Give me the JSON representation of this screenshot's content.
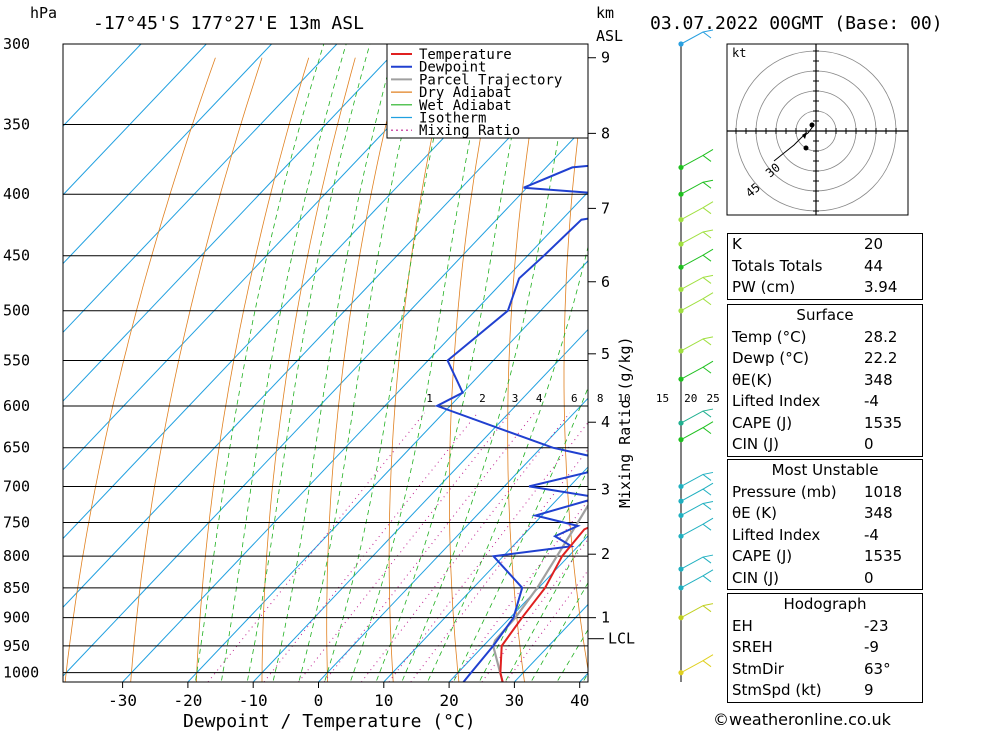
{
  "header": {
    "location": "-17°45'S 177°27'E 13m ASL",
    "datetime": "03.07.2022 00GMT (Base: 00)",
    "hpa_unit": "hPa",
    "km_unit": "km",
    "asl_unit": "ASL"
  },
  "chart_data": {
    "type": "line",
    "title": "-17°45'S 177°27'E 13m ASL",
    "xlabel": "Dewpoint / Temperature (°C)",
    "ylabel": "hPa",
    "y2label": "Mixing Ratio (g/kg)",
    "x_ticks": [
      "-30",
      "-20",
      "-10",
      "0",
      "10",
      "20",
      "30",
      "40"
    ],
    "p_ticks": [
      "300",
      "350",
      "400",
      "450",
      "500",
      "550",
      "600",
      "650",
      "700",
      "750",
      "800",
      "850",
      "900",
      "950",
      "1000"
    ],
    "km_ticks": [
      "1",
      "2",
      "3",
      "4",
      "5",
      "6",
      "7",
      "8",
      "9"
    ],
    "lcl_label": "LCL",
    "mixing_ratio_labels": [
      "1",
      "2",
      "3",
      "4",
      "6",
      "8",
      "10",
      "15",
      "20",
      "25"
    ],
    "legend": [
      "Temperature",
      "Dewpoint",
      "Parcel Trajectory",
      "Dry Adiabat",
      "Wet Adiabat",
      "Isotherm",
      "Mixing Ratio"
    ],
    "colors": {
      "temperature": "#e02020",
      "dewpoint": "#2040d0",
      "parcel": "#a0a0a0",
      "dry_adiabat": "#e08020",
      "wet_adiabat": "#20b020",
      "isotherm": "#20a0e0",
      "mixing_ratio": "#c02090"
    },
    "temperature": [
      [
        1018,
        28.2
      ],
      [
        1000,
        26.5
      ],
      [
        950,
        22.8
      ],
      [
        900,
        21.8
      ],
      [
        850,
        21.0
      ],
      [
        800,
        19.0
      ],
      [
        760,
        18.5
      ],
      [
        750,
        19.8
      ],
      [
        725,
        17.8
      ],
      [
        700,
        16.5
      ],
      [
        650,
        12.8
      ],
      [
        600,
        7.6
      ],
      [
        550,
        3.2
      ],
      [
        500,
        -1.8
      ],
      [
        450,
        -7.5
      ],
      [
        425,
        -11.0
      ],
      [
        400,
        -14.2
      ],
      [
        375,
        -17.0
      ],
      [
        350,
        -21.5
      ],
      [
        325,
        -26.0
      ],
      [
        300,
        -31.0
      ]
    ],
    "dewpoint": [
      [
        1018,
        22.2
      ],
      [
        1000,
        22.0
      ],
      [
        950,
        21.5
      ],
      [
        900,
        20.5
      ],
      [
        850,
        17.5
      ],
      [
        800,
        8.5
      ],
      [
        785,
        19.0
      ],
      [
        770,
        15.0
      ],
      [
        755,
        17.0
      ],
      [
        740,
        9.0
      ],
      [
        715,
        16.0
      ],
      [
        700,
        3.8
      ],
      [
        670,
        15.0
      ],
      [
        650,
        1.8
      ],
      [
        600,
        -22.0
      ],
      [
        585,
        -20.0
      ],
      [
        550,
        -27.0
      ],
      [
        500,
        -25.0
      ],
      [
        470,
        -28.0
      ],
      [
        450,
        -27.5
      ],
      [
        420,
        -27.0
      ],
      [
        410,
        -16.5
      ],
      [
        405,
        -12.5
      ],
      [
        395,
        -40.5
      ],
      [
        380,
        -36.0
      ],
      [
        370,
        -16.0
      ],
      [
        350,
        -40.0
      ],
      [
        335,
        -29.0
      ],
      [
        320,
        -46.0
      ],
      [
        305,
        -42.0
      ],
      [
        300,
        -46.0
      ]
    ],
    "parcel": [
      [
        1018,
        28.2
      ],
      [
        950,
        21.5
      ],
      [
        940,
        21.0
      ],
      [
        900,
        20.8
      ],
      [
        850,
        19.8
      ],
      [
        800,
        18.2
      ],
      [
        750,
        16.5
      ],
      [
        700,
        14.6
      ],
      [
        650,
        12.3
      ],
      [
        600,
        9.8
      ],
      [
        550,
        6.8
      ],
      [
        500,
        3.4
      ],
      [
        450,
        -0.8
      ],
      [
        400,
        -6.0
      ],
      [
        375,
        -9.0
      ]
    ],
    "km_levels": [
      [
        1,
        900
      ],
      [
        2,
        797
      ],
      [
        3,
        704
      ],
      [
        4,
        619
      ],
      [
        5,
        543
      ],
      [
        6,
        473
      ],
      [
        7,
        411
      ],
      [
        8,
        356
      ],
      [
        9,
        308
      ]
    ],
    "lcl_pressure": 937
  },
  "wind_profile": {
    "levels": [
      [
        300,
        "#2aa0e0"
      ],
      [
        380,
        "#20c020"
      ],
      [
        400,
        "#20c020"
      ],
      [
        420,
        "#a0e040"
      ],
      [
        440,
        "#a0e040"
      ],
      [
        460,
        "#20c020"
      ],
      [
        480,
        "#a0e040"
      ],
      [
        500,
        "#a0e040"
      ],
      [
        540,
        "#a0e040"
      ],
      [
        570,
        "#20c020"
      ],
      [
        620,
        "#20b090"
      ],
      [
        640,
        "#20c020"
      ],
      [
        700,
        "#20b0c0"
      ],
      [
        720,
        "#20b0c0"
      ],
      [
        740,
        "#20b0c0"
      ],
      [
        770,
        "#20b0c0"
      ],
      [
        820,
        "#20b0c0"
      ],
      [
        850,
        "#20b0c0"
      ],
      [
        900,
        "#c0d020"
      ],
      [
        1000,
        "#e0d020"
      ]
    ]
  },
  "hodograph": {
    "unit": "kt",
    "rings": [
      "30",
      "45"
    ]
  },
  "indices": {
    "K": {
      "label": "K",
      "value": "20"
    },
    "TT": {
      "label": "Totals Totals",
      "value": "44"
    },
    "PW": {
      "label": "PW (cm)",
      "value": "3.94"
    }
  },
  "surface": {
    "title": "Surface",
    "rows": [
      {
        "label": "Temp (°C)",
        "value": "28.2"
      },
      {
        "label": "Dewp (°C)",
        "value": "22.2"
      },
      {
        "label": "θE(K)",
        "value": "348"
      },
      {
        "label": "Lifted Index",
        "value": "-4"
      },
      {
        "label": "CAPE (J)",
        "value": "1535"
      },
      {
        "label": "CIN (J)",
        "value": "0"
      }
    ]
  },
  "most_unstable": {
    "title": "Most Unstable",
    "rows": [
      {
        "label": "Pressure (mb)",
        "value": "1018"
      },
      {
        "label": "θE (K)",
        "value": "348"
      },
      {
        "label": "Lifted Index",
        "value": "-4"
      },
      {
        "label": "CAPE (J)",
        "value": "1535"
      },
      {
        "label": "CIN (J)",
        "value": "0"
      }
    ]
  },
  "hodo_table": {
    "title": "Hodograph",
    "rows": [
      {
        "label": "EH",
        "value": "-23"
      },
      {
        "label": "SREH",
        "value": "-9"
      },
      {
        "label": "StmDir",
        "value": "63°"
      },
      {
        "label": "StmSpd (kt)",
        "value": "9"
      }
    ]
  },
  "footer": "©weatheronline.co.uk"
}
